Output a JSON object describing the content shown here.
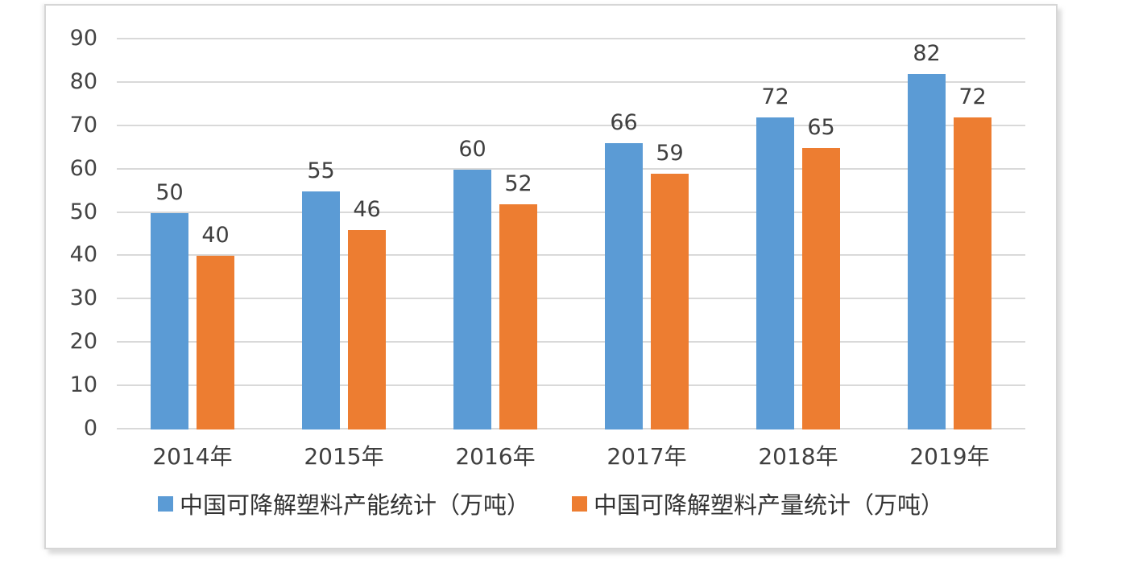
{
  "chart_data": {
    "type": "bar",
    "title": "",
    "xlabel": "",
    "ylabel": "",
    "categories": [
      "2014年",
      "2015年",
      "2016年",
      "2017年",
      "2018年",
      "2019年"
    ],
    "series": [
      {
        "id": "capacity",
        "name": "中国可降解塑料产能统计（万吨）",
        "color": "#5B9BD5",
        "values": [
          50,
          55,
          60,
          66,
          72,
          82
        ]
      },
      {
        "id": "output",
        "name": "中国可降解塑料产量统计（万吨）",
        "color": "#ED7D31",
        "values": [
          40,
          46,
          52,
          59,
          65,
          72
        ]
      }
    ],
    "ylim": [
      0,
      90
    ],
    "ytick_step": 10,
    "yticks": [
      90,
      80,
      70,
      60,
      50,
      40,
      30,
      20,
      10,
      0
    ],
    "grid": true,
    "data_labels": true,
    "legend_position": "bottom"
  },
  "colors": {
    "gridline": "#D9D9D9",
    "frame_border": "#D6D6D6",
    "axis_text": "#444444",
    "label_text": "#3F3F3F",
    "background": "#FFFFFF"
  }
}
